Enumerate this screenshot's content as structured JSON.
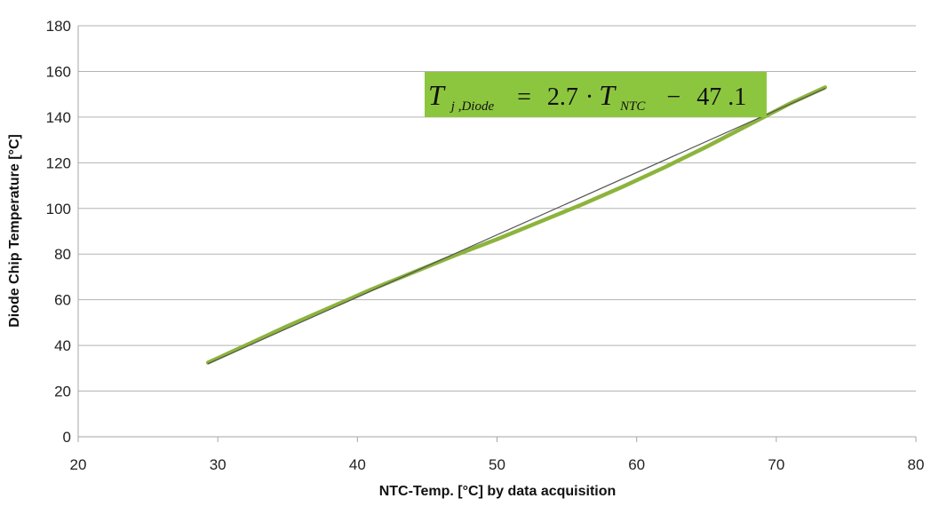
{
  "chart_data": {
    "type": "line",
    "title": "",
    "xlabel": "NTC-Temp. [°C] by data acquisition",
    "ylabel": "Diode Chip Temperature [°C]",
    "xlim": [
      20,
      80
    ],
    "ylim": [
      0,
      180
    ],
    "x_ticks": [
      20,
      30,
      40,
      50,
      60,
      70,
      80
    ],
    "y_ticks": [
      0,
      20,
      40,
      60,
      80,
      100,
      120,
      140,
      160,
      180
    ],
    "grid": "horizontal",
    "series": [
      {
        "color": "#8cb43c",
        "x": [
          29.3,
          32,
          35,
          38,
          41,
          44,
          47,
          50,
          53,
          56,
          59,
          62,
          65,
          68,
          71,
          73.5
        ],
        "y": [
          32.5,
          40,
          48.5,
          56.5,
          64.5,
          72,
          79.5,
          86.5,
          94,
          101.5,
          109.5,
          118,
          127,
          136.5,
          146,
          153
        ]
      },
      {
        "color": "#555555",
        "x": [
          29.3,
          73.5
        ],
        "y": [
          32.0,
          152.5
        ]
      }
    ],
    "annotation": {
      "background": "#8cc63f",
      "parts": {
        "t1": "T",
        "sub1": "j ,Diode",
        "eq": "=",
        "coef": "2.7",
        "dot": "·",
        "t2": "T",
        "sub2": "NTC",
        "minus": "−",
        "const": "47 .1"
      }
    }
  }
}
